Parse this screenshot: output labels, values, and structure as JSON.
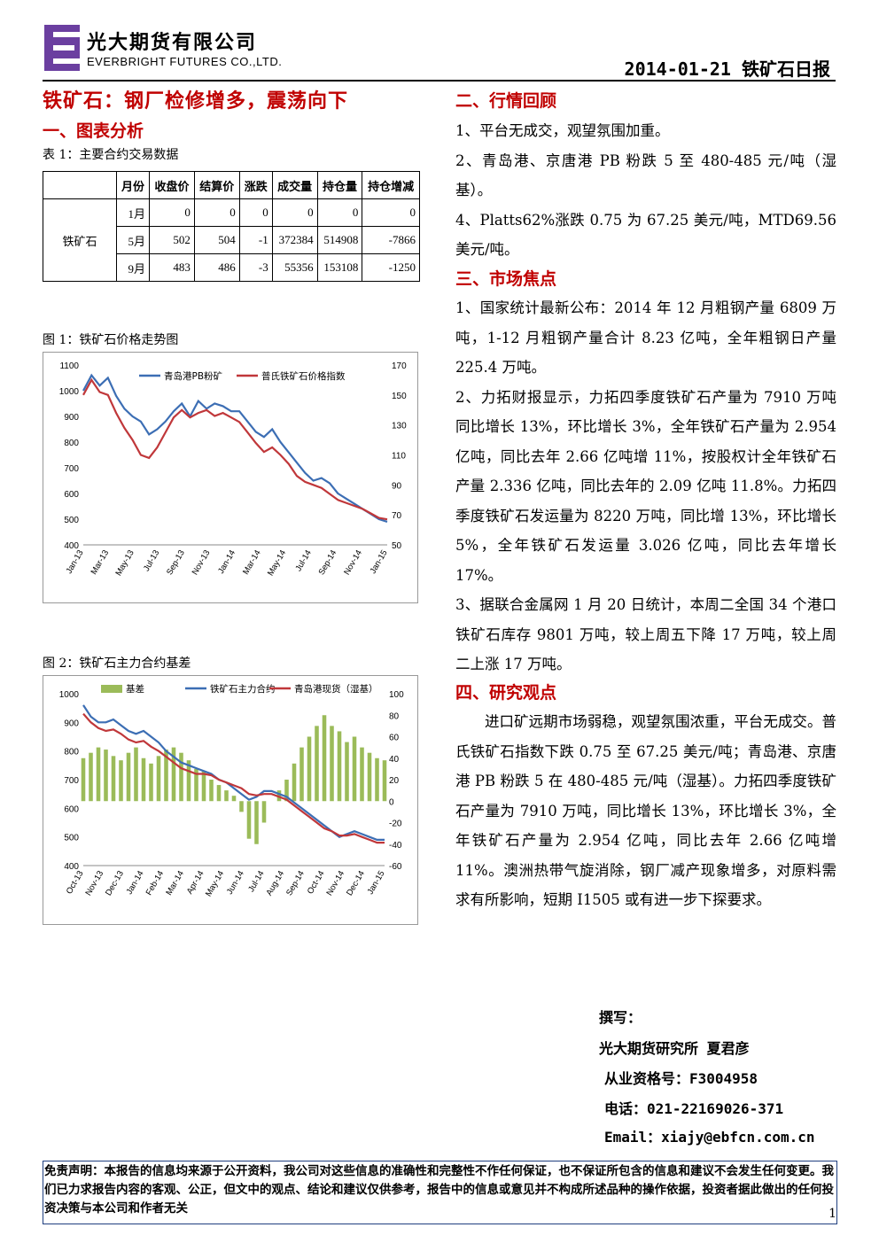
{
  "header": {
    "company_cn": "光大期货有限公司",
    "company_en": "EVERBRIGHT FUTURES CO.,LTD.",
    "report_date": "2014-01-21 铁矿石日报"
  },
  "title": "铁矿石：钢厂检修增多，震荡向下",
  "left": {
    "section1": "一、图表分析",
    "table_caption": "表 1：主要合约交易数据",
    "table": {
      "headers": [
        "月份",
        "收盘价",
        "结算价",
        "涨跌",
        "成交量",
        "持仓量",
        "持仓增减"
      ],
      "product": "铁矿石",
      "rows": [
        [
          "1月",
          "0",
          "0",
          "0",
          "0",
          "0",
          "0"
        ],
        [
          "5月",
          "502",
          "504",
          "-1",
          "372384",
          "514908",
          "-7866"
        ],
        [
          "9月",
          "483",
          "486",
          "-3",
          "55356",
          "153108",
          "-1250"
        ]
      ]
    },
    "fig1_caption": "图 1：铁矿石价格走势图",
    "fig2_caption": "图 2：铁矿石主力合约基差"
  },
  "chart_data": [
    {
      "type": "line",
      "legend_position": "top",
      "x_ticks": [
        "Jan-13",
        "Mar-13",
        "May-13",
        "Jul-13",
        "Sep-13",
        "Nov-13",
        "Jan-14",
        "Mar-14",
        "May-14",
        "Jul-14",
        "Sep-14",
        "Nov-14",
        "Jan-15"
      ],
      "ylim_left": [
        400,
        1100
      ],
      "yticks_left": [
        "1100",
        "1000",
        "900",
        "800",
        "700",
        "600",
        "500",
        "400"
      ],
      "ylim_right": [
        50,
        170
      ],
      "yticks_right": [
        "170",
        "150",
        "130",
        "110",
        "90",
        "70",
        "50"
      ],
      "series": [
        {
          "name": "青岛港PB粉矿",
          "color": "#3c6eb4",
          "axis": "left",
          "values": [
            1000,
            1060,
            1020,
            1050,
            980,
            930,
            900,
            880,
            830,
            850,
            880,
            920,
            950,
            900,
            960,
            930,
            950,
            940,
            920,
            920,
            880,
            840,
            820,
            850,
            800,
            760,
            720,
            680,
            650,
            660,
            640,
            600,
            580,
            560,
            540,
            520,
            500,
            490
          ]
        },
        {
          "name": "普氏铁矿石价格指数",
          "color": "#c0373a",
          "axis": "right",
          "values": [
            150,
            160,
            152,
            150,
            138,
            128,
            120,
            110,
            108,
            115,
            125,
            135,
            140,
            135,
            138,
            140,
            136,
            138,
            135,
            132,
            125,
            118,
            112,
            115,
            110,
            104,
            96,
            92,
            90,
            88,
            84,
            80,
            78,
            76,
            74,
            71,
            68,
            67
          ]
        }
      ]
    },
    {
      "type": "line",
      "legend_position": "top",
      "x_ticks": [
        "Oct-13",
        "Nov-13",
        "Dec-13",
        "Jan-14",
        "Feb-14",
        "Mar-14",
        "Apr-14",
        "May-14",
        "Jun-14",
        "Jul-14",
        "Aug-14",
        "Sep-14",
        "Oct-14",
        "Nov-14",
        "Dec-14",
        "Jan-15"
      ],
      "ylim_left": [
        400,
        1000
      ],
      "yticks_left": [
        "1000",
        "900",
        "800",
        "700",
        "600",
        "500",
        "400"
      ],
      "ylim_right": [
        -60,
        100
      ],
      "yticks_right": [
        "100",
        "80",
        "60",
        "40",
        "20",
        "0",
        "-20",
        "-40",
        "-60"
      ],
      "series": [
        {
          "name": "基差",
          "color": "#9bbb59",
          "axis": "right",
          "kind": "bar",
          "values": [
            40,
            45,
            50,
            48,
            42,
            38,
            45,
            50,
            40,
            35,
            42,
            48,
            50,
            45,
            38,
            30,
            28,
            20,
            15,
            10,
            5,
            -10,
            -35,
            -40,
            -20,
            0,
            10,
            20,
            35,
            50,
            60,
            70,
            80,
            70,
            65,
            55,
            60,
            50,
            45,
            40,
            38
          ]
        },
        {
          "name": "铁矿石主力合约",
          "color": "#3c6eb4",
          "axis": "left",
          "values": [
            960,
            920,
            900,
            900,
            910,
            890,
            870,
            860,
            870,
            850,
            830,
            800,
            780,
            760,
            750,
            740,
            730,
            720,
            700,
            690,
            670,
            650,
            630,
            640,
            660,
            660,
            650,
            640,
            620,
            600,
            580,
            560,
            540,
            520,
            500,
            510,
            520,
            510,
            500,
            490,
            490
          ]
        },
        {
          "name": "青岛港现货（湿基）",
          "color": "#c0373a",
          "axis": "left",
          "values": [
            930,
            900,
            880,
            870,
            875,
            860,
            840,
            830,
            835,
            815,
            800,
            780,
            760,
            740,
            730,
            720,
            720,
            715,
            700,
            690,
            680,
            670,
            650,
            645,
            650,
            650,
            640,
            630,
            610,
            590,
            570,
            550,
            530,
            520,
            505,
            505,
            510,
            500,
            490,
            480,
            480
          ]
        }
      ]
    }
  ],
  "right": {
    "section2": "二、行情回顾",
    "review": [
      "1、平台无成交，观望氛围加重。",
      "2、青岛港、京唐港 PB 粉跌 5 至 480-485 元/吨（湿基）。",
      "4、Platts62%涨跌 0.75 为 67.25 美元/吨，MTD69.56 美元/吨。"
    ],
    "section3": "三、市场焦点",
    "focus": [
      "1、国家统计最新公布：2014 年 12 月粗钢产量 6809 万吨，1-12 月粗钢产量合计 8.23 亿吨，全年粗钢日产量 225.4 万吨。",
      "2、力拓财报显示，力拓四季度铁矿石产量为 7910 万吨 同比增长 13%，环比增长 3%，全年铁矿石产量为 2.954 亿吨，同比去年 2.66 亿吨增 11%，按股权计全年铁矿石产量 2.336 亿吨，同比去年的 2.09 亿吨 11.8%。力拓四季度铁矿石发运量为 8220 万吨，同比增 13%，环比增长 5%，全年铁矿石发运量 3.026 亿吨，同比去年增长 17%。",
      "3、据联合金属网 1 月 20 日统计，本周二全国 34 个港口铁矿石库存 9801 万吨，较上周五下降 17 万吨，较上周二上涨 17 万吨。"
    ],
    "section4": "四、研究观点",
    "view": "进口矿远期市场弱稳，观望氛围浓重，平台无成交。普氏铁矿石指数下跌 0.75 至 67.25 美元/吨；青岛港、京唐港 PB 粉跌 5 在 480-485 元/吨（湿基）。力拓四季度铁矿石产量为 7910 万吨，同比增长 13%，环比增长 3%，全年铁矿石产量为 2.954 亿吨，同比去年 2.66 亿吨增 11%。澳洲热带气旋消除，钢厂减产现象增多，对原料需求有所影响，短期 I1505 或有进一步下探要求。"
  },
  "author": {
    "label": "撰写：",
    "org": "光大期货研究所 夏君彦",
    "cert": "从业资格号：F3004958",
    "phone": "电话：021-22169026-371",
    "email": "Email：xiajy@ebfcn.com.cn"
  },
  "disclaimer": "免责声明：本报告的信息均来源于公开资料，我公司对这些信息的准确性和完整性不作任何保证，也不保证所包含的信息和建议不会发生任何变更。我们已力求报告内容的客观、公正，但文中的观点、结论和建议仅供参考，报告中的信息或意见并不构成所述品种的操作依据，投资者据此做出的任何投资决策与本公司和作者无关",
  "page_number": "1",
  "colors": {
    "accent": "#c00000",
    "blue": "#3c6eb4",
    "red": "#c0373a",
    "green": "#9bbb59"
  }
}
